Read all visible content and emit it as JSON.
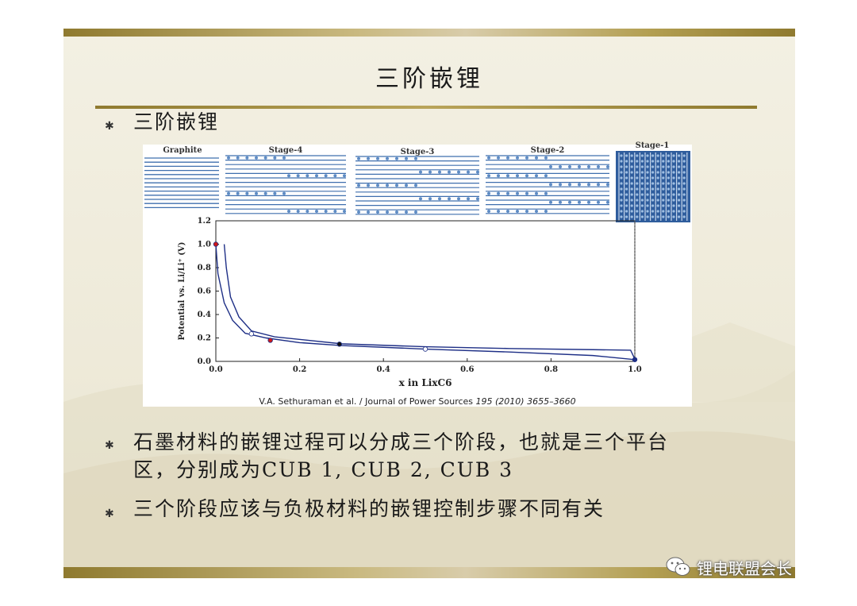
{
  "slide": {
    "title": "三阶嵌锂",
    "bullets": [
      {
        "symbol": "✱",
        "text": "三阶嵌锂"
      },
      {
        "symbol": "✱",
        "line1": "石墨材料的嵌锂过程可以分成三个阶段，也就是三个平台",
        "line2": "区，分别成为CUB 1, CUB 2, CUB 3"
      },
      {
        "symbol": "✱",
        "text": "三个阶段应该与负极材料的嵌锂控制步骤不同有关"
      }
    ]
  },
  "figure": {
    "stages": [
      "Graphite",
      "Stage-4",
      "Stage-3",
      "Stage-2",
      "Stage-1"
    ],
    "citation_plain": "V.A. Sethuraman et al. / Journal of Power Sources ",
    "citation_italic": "195 (2010) 3655–3660",
    "colors": {
      "curve": "#1e2f86",
      "layer": "#3f6fae",
      "ion": "#5d8bc4"
    }
  },
  "chart_data": {
    "type": "line",
    "xlabel": "x in LixC6",
    "ylabel": "Potential vs. Li/Li⁺ (V)",
    "xlim": [
      0.0,
      1.0
    ],
    "ylim": [
      0.0,
      1.2
    ],
    "xticks": [
      "0.0",
      "0.2",
      "0.4",
      "0.6",
      "0.8",
      "1.0"
    ],
    "yticks": [
      "0.0",
      "0.2",
      "0.4",
      "0.6",
      "0.8",
      "1.0",
      "1.2"
    ],
    "series": [
      {
        "values": [
          [
            0.0,
            1.0
          ],
          [
            0.005,
            0.75
          ],
          [
            0.02,
            0.5
          ],
          [
            0.04,
            0.35
          ],
          [
            0.07,
            0.24
          ],
          [
            0.12,
            0.2
          ],
          [
            0.2,
            0.16
          ],
          [
            0.3,
            0.135
          ],
          [
            0.5,
            0.105
          ],
          [
            0.7,
            0.08
          ],
          [
            0.9,
            0.05
          ],
          [
            1.0,
            0.015
          ]
        ]
      },
      {
        "values": [
          [
            0.02,
            1.0
          ],
          [
            0.025,
            0.8
          ],
          [
            0.035,
            0.55
          ],
          [
            0.055,
            0.38
          ],
          [
            0.085,
            0.26
          ],
          [
            0.14,
            0.21
          ],
          [
            0.22,
            0.18
          ],
          [
            0.3,
            0.15
          ],
          [
            0.5,
            0.125
          ],
          [
            0.7,
            0.11
          ],
          [
            0.9,
            0.1
          ],
          [
            0.99,
            0.095
          ],
          [
            1.0,
            0.02
          ]
        ]
      }
    ],
    "markers": [
      {
        "x": 0.0,
        "y": 1.0,
        "color": "#d01818"
      },
      {
        "x": 0.13,
        "y": 0.18,
        "color": "#d01818"
      },
      {
        "x": 0.295,
        "y": 0.147,
        "color": "#111111"
      },
      {
        "x": 0.085,
        "y": 0.235,
        "color": "#ffffff"
      },
      {
        "x": 0.5,
        "y": 0.105,
        "color": "#ffffff"
      },
      {
        "x": 1.0,
        "y": 0.015,
        "color": "#1e2f86"
      }
    ],
    "vline_x": 1.0
  },
  "watermark": {
    "text": "锂电联盟会长",
    "icon": "wechat-icon"
  }
}
